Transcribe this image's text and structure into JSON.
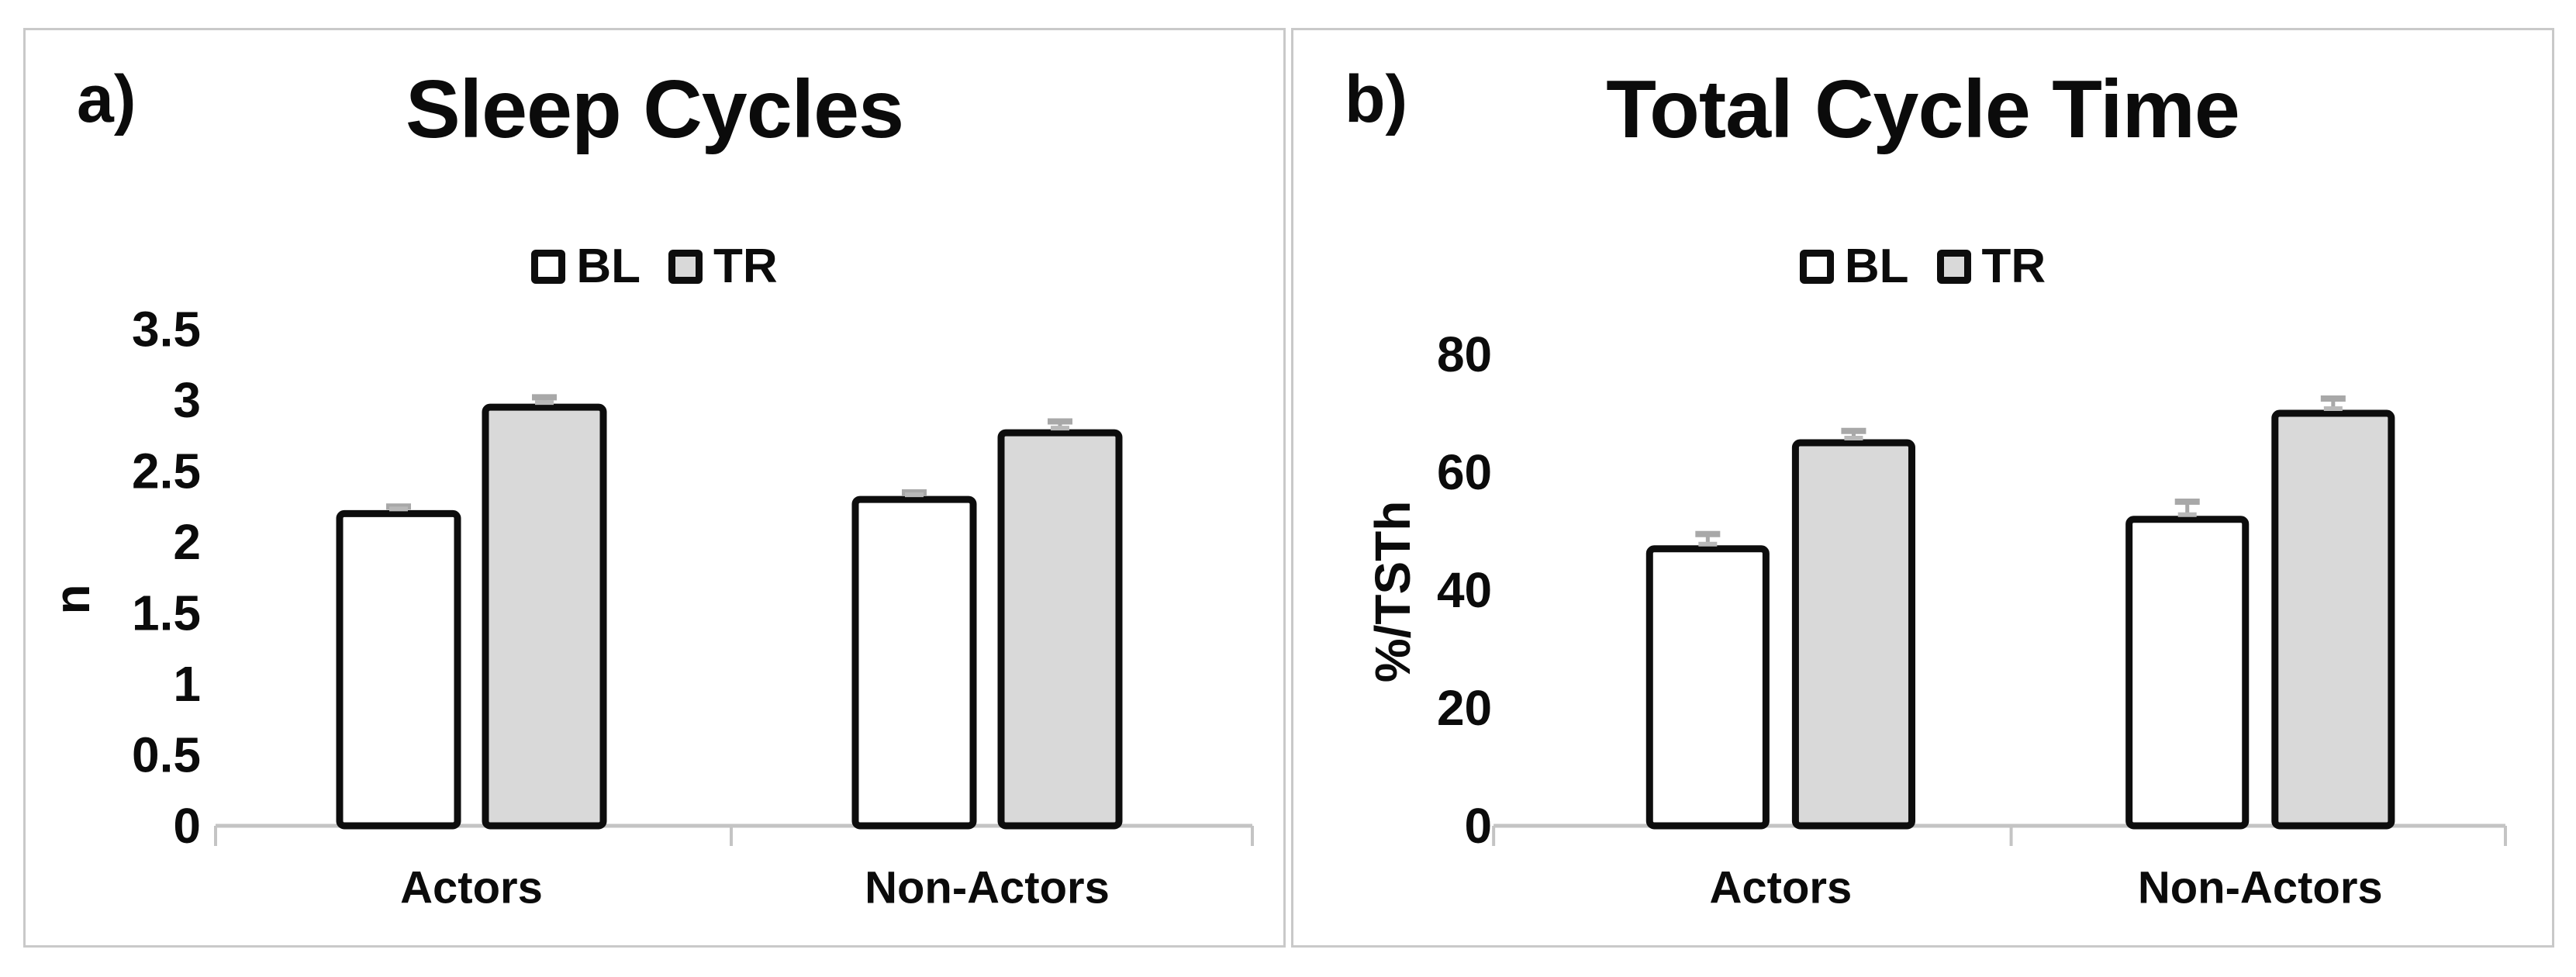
{
  "figure": {
    "background": "#ffffff",
    "panel_border_color": "#c9c9c9",
    "text_color": "#0b0b0b"
  },
  "chart_data": [
    {
      "type": "bar",
      "panel_label": "a)",
      "title": "Sleep Cycles",
      "ylabel": "n",
      "xlabel": "",
      "categories": [
        "Actors",
        "Non-Actors"
      ],
      "series": [
        {
          "name": "BL",
          "fill": "#ffffff",
          "values": [
            2.2,
            2.3
          ],
          "errors": [
            0.05,
            0.05
          ]
        },
        {
          "name": "TR",
          "fill": "#d9d9d9",
          "values": [
            2.95,
            2.77
          ],
          "errors": [
            0.07,
            0.08
          ]
        }
      ],
      "yticks": [
        0,
        0.5,
        1,
        1.5,
        2,
        2.5,
        3,
        3.5
      ],
      "ylim": [
        0,
        3.9
      ],
      "grid": false,
      "legend_position": "top-center",
      "bar_stroke": "#0d0d0d",
      "error_color": "#a8a8a8",
      "axis_color": "#c4c4c4"
    },
    {
      "type": "bar",
      "panel_label": "b)",
      "title": "Total Cycle Time",
      "ylabel": "%/TSTh",
      "xlabel": "",
      "categories": [
        "Actors",
        "Non-Actors"
      ],
      "series": [
        {
          "name": "BL",
          "fill": "#ffffff",
          "values": [
            47,
            52
          ],
          "errors": [
            2.5,
            3
          ]
        },
        {
          "name": "TR",
          "fill": "#d9d9d9",
          "values": [
            65,
            70
          ],
          "errors": [
            2,
            2.5
          ]
        }
      ],
      "yticks": [
        0,
        20,
        40,
        60,
        80
      ],
      "ylim": [
        0,
        88
      ],
      "grid": false,
      "legend_position": "top-center",
      "bar_stroke": "#0d0d0d",
      "error_color": "#a8a8a8",
      "axis_color": "#c4c4c4"
    }
  ]
}
